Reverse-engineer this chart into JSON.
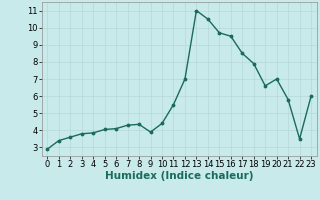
{
  "x": [
    0,
    1,
    2,
    3,
    4,
    5,
    6,
    7,
    8,
    9,
    10,
    11,
    12,
    13,
    14,
    15,
    16,
    17,
    18,
    19,
    20,
    21,
    22,
    23
  ],
  "y": [
    2.9,
    3.4,
    3.6,
    3.8,
    3.85,
    4.05,
    4.1,
    4.3,
    4.35,
    3.9,
    4.4,
    5.5,
    7.0,
    11.0,
    10.5,
    9.7,
    9.5,
    8.5,
    7.9,
    6.6,
    7.0,
    5.8,
    3.5,
    6.0
  ],
  "line_color": "#1a6b5a",
  "marker": ".",
  "markersize": 3.5,
  "linewidth": 1.0,
  "xlabel": "Humidex (Indice chaleur)",
  "xlim": [
    -0.5,
    23.5
  ],
  "ylim": [
    2.5,
    11.5
  ],
  "yticks": [
    3,
    4,
    5,
    6,
    7,
    8,
    9,
    10,
    11
  ],
  "xticks": [
    0,
    1,
    2,
    3,
    4,
    5,
    6,
    7,
    8,
    9,
    10,
    11,
    12,
    13,
    14,
    15,
    16,
    17,
    18,
    19,
    20,
    21,
    22,
    23
  ],
  "bg_color": "#c8eaea",
  "grid_color": "#b8d8d8",
  "tick_fontsize": 6,
  "xlabel_fontsize": 7.5,
  "xlabel_fontweight": "bold"
}
